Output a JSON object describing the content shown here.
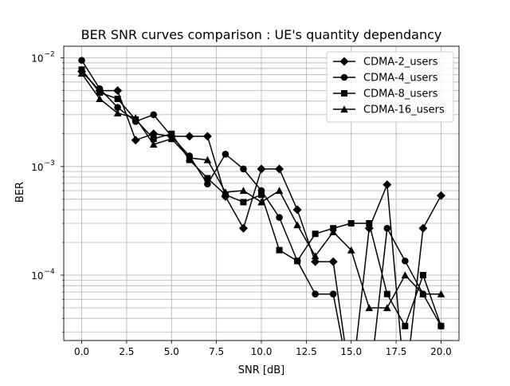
{
  "chart_data": {
    "type": "line",
    "title": "BER SNR curves comparison : UE's quantity dependancy",
    "xlabel": "SNR [dB]",
    "ylabel": "BER",
    "x_ticks": [
      "0.0",
      "2.5",
      "5.0",
      "7.5",
      "10.0",
      "12.5",
      "15.0",
      "17.5",
      "20.0"
    ],
    "y_ticks": [
      {
        "base": "10",
        "exp": "−4",
        "value": 0.0001
      },
      {
        "base": "10",
        "exp": "−3",
        "value": 0.001
      },
      {
        "base": "10",
        "exp": "−2",
        "value": 0.01
      }
    ],
    "xlim": [
      -1,
      21
    ],
    "ylim": [
      2.5e-05,
      0.0128
    ],
    "yscale": "log",
    "grid": "on (major and minor)",
    "legend_position": "top-right",
    "x": [
      0,
      1,
      2,
      3,
      4,
      5,
      6,
      7,
      8,
      9,
      10,
      11,
      12,
      13,
      14,
      15,
      16,
      17,
      18,
      19,
      20
    ],
    "series": [
      {
        "name": "CDMA-2_users",
        "marker": "diamond",
        "values": [
          0.0075,
          0.005,
          0.005,
          0.00175,
          0.002,
          0.0019,
          0.0019,
          0.0019,
          0.00053,
          0.00027,
          0.00095,
          0.00095,
          0.0004,
          0.000133,
          0.000133,
          0,
          0.00027,
          0.00068,
          0,
          0.00027,
          0.00054
        ]
      },
      {
        "name": "CDMA-4_users",
        "marker": "circle",
        "values": [
          0.0095,
          0.0052,
          0.0035,
          0.0026,
          0.003,
          0.0019,
          0.00125,
          0.00069,
          0.0013,
          0.00095,
          0.0006,
          0.00034,
          0.000135,
          6.7e-05,
          6.7e-05,
          0,
          0,
          0.00027,
          0.000135,
          6.7e-05,
          3.4e-05
        ]
      },
      {
        "name": "CDMA-8_users",
        "marker": "square",
        "values": [
          0.0078,
          0.0048,
          0.0042,
          0.0027,
          0.0018,
          0.002,
          0.00115,
          0.00078,
          0.00055,
          0.00047,
          0.00055,
          0.00017,
          0.000135,
          0.00024,
          0.00027,
          0.0003,
          0.0003,
          6.7e-05,
          3.4e-05,
          0.0001,
          3.4e-05
        ]
      },
      {
        "name": "CDMA-16_users",
        "marker": "triangle",
        "values": [
          0.0072,
          0.0042,
          0.0031,
          0.0028,
          0.0016,
          0.0018,
          0.0012,
          0.00115,
          0.00058,
          0.0006,
          0.00047,
          0.0006,
          0.00029,
          0.00015,
          0.00025,
          0.00017,
          5e-05,
          5e-05,
          0.0001,
          6.7e-05,
          6.7e-05
        ]
      }
    ],
    "color": "#000000"
  }
}
